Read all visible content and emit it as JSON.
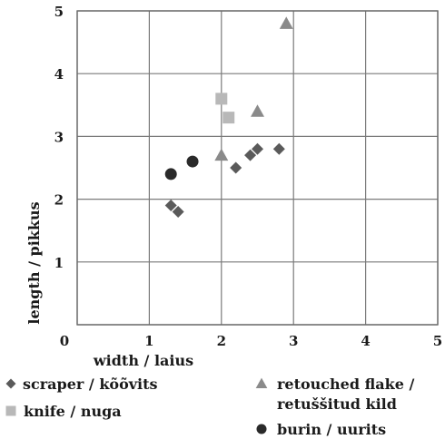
{
  "chart_data": {
    "type": "scatter",
    "xlabel": "width / laius",
    "ylabel": "length / pikkus",
    "xlim": [
      0,
      5
    ],
    "ylim": [
      0,
      5
    ],
    "xticks": [
      "0",
      "1",
      "2",
      "3",
      "4",
      "5"
    ],
    "yticks": [
      "0",
      "1",
      "2",
      "3",
      "4",
      "5"
    ],
    "grid": true,
    "legend_position": "bottom",
    "series": [
      {
        "name": "scraper / kõõvits",
        "marker": "diamond",
        "color": "#5a5a5a",
        "points": [
          [
            1.3,
            1.9
          ],
          [
            1.4,
            1.8
          ],
          [
            2.2,
            2.5
          ],
          [
            2.4,
            2.7
          ],
          [
            2.5,
            2.8
          ],
          [
            2.8,
            2.8
          ]
        ]
      },
      {
        "name": "retouched flake / retuššitud kild",
        "name_lines": [
          "retouched flake /",
          "retuššitud kild"
        ],
        "marker": "triangle",
        "color": "#8a8a8a",
        "points": [
          [
            2.0,
            2.7
          ],
          [
            2.5,
            3.4
          ],
          [
            2.9,
            4.8
          ]
        ]
      },
      {
        "name": "knife / nuga",
        "marker": "square",
        "color": "#b8b8b8",
        "points": [
          [
            2.0,
            3.6
          ],
          [
            2.1,
            3.3
          ]
        ]
      },
      {
        "name": "burin / uurits",
        "marker": "circle",
        "color": "#2a2a2a",
        "points": [
          [
            1.3,
            2.4
          ],
          [
            1.6,
            2.6
          ]
        ]
      }
    ]
  }
}
